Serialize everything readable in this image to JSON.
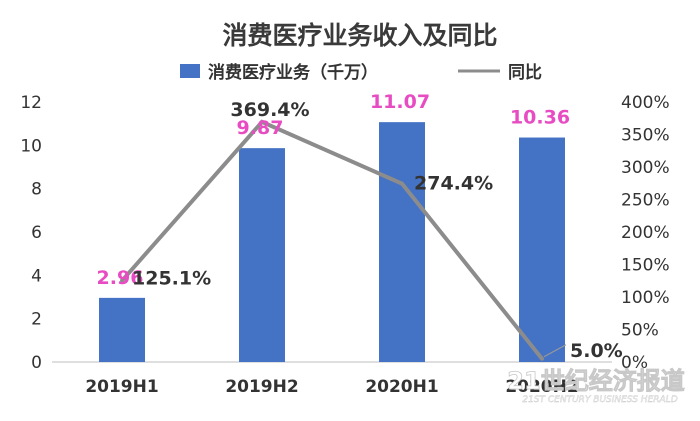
{
  "chart_data": {
    "type": "bar",
    "title": "消费医疗业务收入及同比",
    "categories": [
      "2019H1",
      "2019H2",
      "2020H1",
      "2020H2"
    ],
    "series": [
      {
        "name": "消费医疗业务（千万）",
        "type": "bar",
        "axis": "left",
        "color": "#4472c4",
        "values": [
          2.96,
          9.87,
          11.07,
          10.36
        ],
        "labels": [
          "2.96",
          "9.87",
          "11.07",
          "10.36"
        ],
        "label_color": "#e84cc3"
      },
      {
        "name": "同比",
        "type": "line",
        "axis": "right",
        "color": "#8c8c8c",
        "values": [
          125.1,
          369.4,
          274.4,
          5.0
        ],
        "labels": [
          "125.1%",
          "369.4%",
          "274.4%",
          "5.0%"
        ]
      }
    ],
    "y_left": {
      "min": 0,
      "max": 12,
      "ticks": [
        "0",
        "2",
        "4",
        "6",
        "8",
        "10",
        "12"
      ]
    },
    "y_right": {
      "min": 0,
      "max": 400,
      "ticks": [
        "0%",
        "50%",
        "100%",
        "150%",
        "200%",
        "250%",
        "300%",
        "350%",
        "400%"
      ]
    },
    "legend_position": "top-center",
    "grid": false
  },
  "watermark": {
    "cn": "21世纪经济报道",
    "en": "21ST CENTURY BUSINESS HERALD"
  }
}
